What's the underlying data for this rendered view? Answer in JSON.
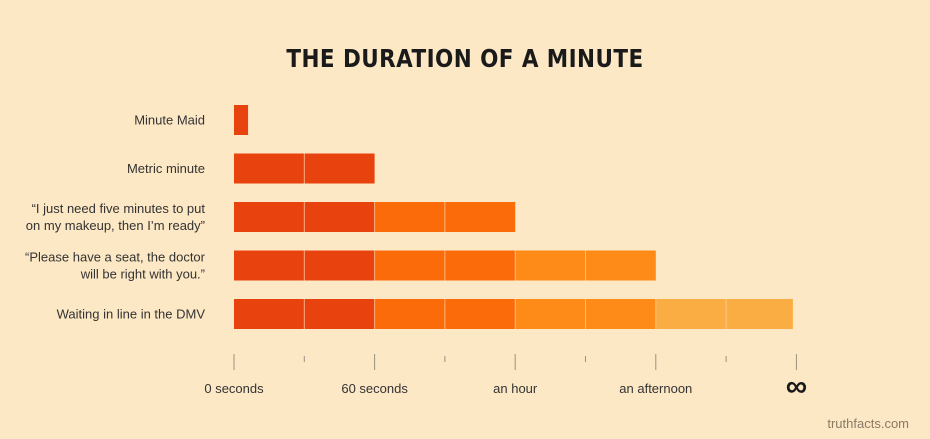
{
  "title": "THE DURATION OF A MINUTE",
  "footer": "truthfacts.com",
  "colors": {
    "background": "#fde8c5",
    "segment_colors": [
      "#e8420e",
      "#e8420e",
      "#fb6b0a",
      "#fb6b0a",
      "#fe8a17",
      "#fe8a17",
      "#f9ad42",
      "#f9ad42"
    ],
    "axis": "#9a8f80",
    "label_text": "#333333"
  },
  "chart_data": {
    "type": "bar",
    "orientation": "horizontal",
    "title": "THE DURATION OF A MINUTE",
    "categories": [
      [
        "Minute Maid"
      ],
      [
        "Metric minute"
      ],
      [
        "“I just need five minutes to put",
        "on my makeup, then I’m ready”"
      ],
      [
        "“Please have a seat, the doctor",
        "will be right with you.”"
      ],
      [
        "Waiting in line in the DMV"
      ]
    ],
    "values": [
      0.2,
      2,
      4,
      6,
      7.95
    ],
    "tick_labels": [
      "0 seconds",
      "60 seconds",
      "an hour",
      "an afternoon",
      "∞"
    ],
    "tick_label_positions": [
      0,
      2,
      4,
      6,
      8
    ],
    "xlim": [
      0,
      8
    ],
    "segment_unit": 1,
    "grid": false
  }
}
